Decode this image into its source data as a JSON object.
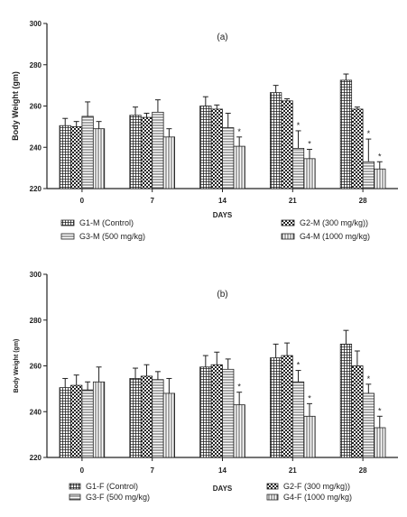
{
  "chart_data": [
    {
      "type": "bar",
      "panel_label": "(a)",
      "title": "",
      "xlabel": "DAYS",
      "ylabel": "Body Weight (gm)",
      "ylim": [
        220,
        300
      ],
      "yticks": [
        220,
        240,
        260,
        280,
        300
      ],
      "categories": [
        "0",
        "7",
        "14",
        "21",
        "28"
      ],
      "series": [
        {
          "name": "G1-M (Control)",
          "pattern": "grid",
          "values": [
            250.5,
            255.5,
            260,
            266.5,
            272.5
          ],
          "errors": [
            3.5,
            4,
            4.5,
            3.5,
            3
          ]
        },
        {
          "name": "G2-M (300 mg/kg))",
          "pattern": "check",
          "values": [
            250,
            254.5,
            258.5,
            262.5,
            258.5
          ],
          "errors": [
            2.5,
            2,
            2,
            1,
            1
          ]
        },
        {
          "name": "G3-M (500 mg/kg)",
          "pattern": "hlines",
          "values": [
            255,
            257,
            249.5,
            239.5,
            233
          ],
          "errors": [
            7,
            6,
            7,
            8.5,
            11
          ]
        },
        {
          "name": "G4-M (1000 mg/kg)",
          "pattern": "vlines",
          "values": [
            249,
            245,
            240.5,
            234.5,
            229.5
          ],
          "errors": [
            3.5,
            4,
            4.5,
            4.5,
            3.5
          ]
        }
      ],
      "significance": [
        {
          "category": "14",
          "series": 3,
          "label": "*"
        },
        {
          "category": "21",
          "series": 2,
          "label": "*"
        },
        {
          "category": "21",
          "series": 3,
          "label": "*"
        },
        {
          "category": "28",
          "series": 2,
          "label": "*"
        },
        {
          "category": "28",
          "series": 3,
          "label": "*"
        }
      ],
      "legend": "below"
    },
    {
      "type": "bar",
      "panel_label": "(b)",
      "title": "",
      "xlabel": "DAYS",
      "ylabel": "Body Weight (gm)",
      "ylim": [
        220,
        300
      ],
      "yticks": [
        220,
        240,
        260,
        280,
        300
      ],
      "categories": [
        "0",
        "7",
        "14",
        "21",
        "28"
      ],
      "series": [
        {
          "name": "G1-F (Control)",
          "pattern": "grid",
          "values": [
            250.5,
            254.5,
            259.5,
            263.5,
            269.5
          ],
          "errors": [
            4,
            4.5,
            5,
            6,
            6
          ]
        },
        {
          "name": "G2-F (300 mg/kg))",
          "pattern": "check",
          "values": [
            251.5,
            255.5,
            260.5,
            264.5,
            260
          ],
          "errors": [
            4.5,
            5,
            5.5,
            5.5,
            6.5
          ]
        },
        {
          "name": "G3-F (500 mg/kg)",
          "pattern": "hlines",
          "values": [
            249.5,
            254,
            258.5,
            253,
            248
          ],
          "errors": [
            3.5,
            3.5,
            4.5,
            5,
            4
          ]
        },
        {
          "name": "G4-F (1000 mg/kg)",
          "pattern": "vlines",
          "values": [
            253,
            248,
            243,
            238,
            233
          ],
          "errors": [
            6.5,
            6.5,
            5.5,
            5.5,
            5
          ]
        }
      ],
      "significance": [
        {
          "category": "14",
          "series": 3,
          "label": "*"
        },
        {
          "category": "21",
          "series": 2,
          "label": "*"
        },
        {
          "category": "21",
          "series": 3,
          "label": "*"
        },
        {
          "category": "28",
          "series": 2,
          "label": "*"
        },
        {
          "category": "28",
          "series": 3,
          "label": "*"
        }
      ],
      "legend": "below"
    }
  ]
}
